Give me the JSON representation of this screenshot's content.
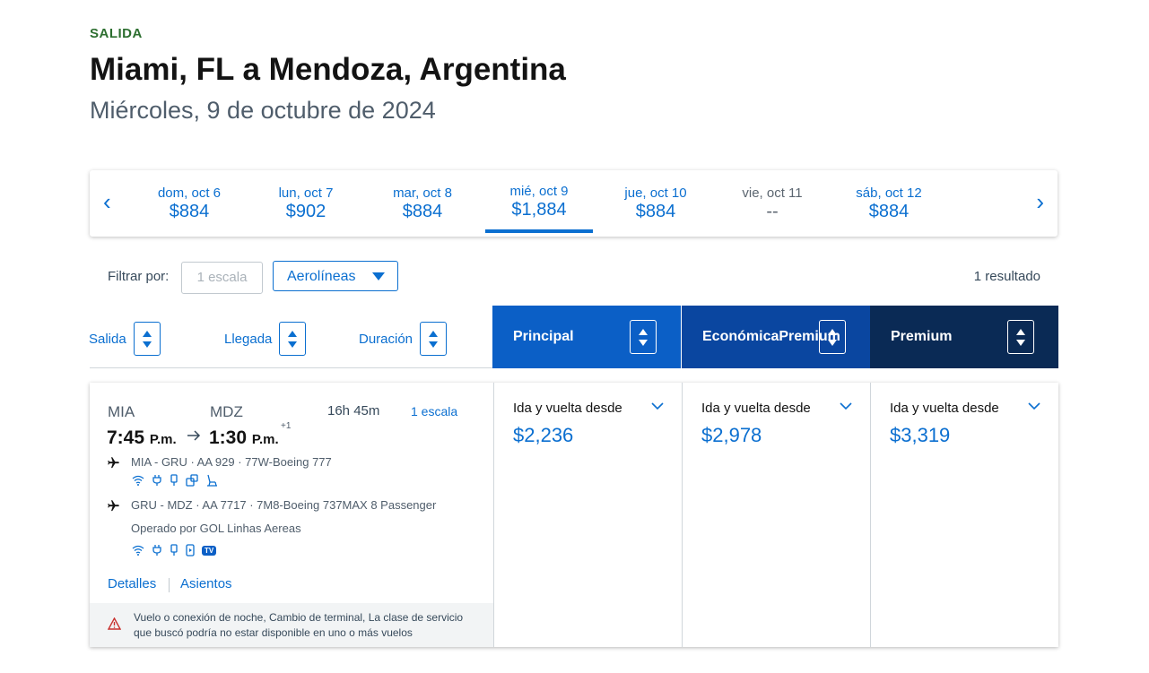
{
  "header": {
    "direction": "SALIDA",
    "route": "Miami, FL a Mendoza, Argentina",
    "date": "Miércoles, 9 de octubre de 2024"
  },
  "carousel": {
    "prev": "‹",
    "next": "›",
    "days": [
      {
        "day": "dom, oct 6",
        "price": "$884"
      },
      {
        "day": "lun, oct 7",
        "price": "$902"
      },
      {
        "day": "mar, oct 8",
        "price": "$884"
      },
      {
        "day": "mié, oct 9",
        "price": "$1,884"
      },
      {
        "day": "jue, oct 10",
        "price": "$884"
      },
      {
        "day": "vie, oct 11",
        "price": "--"
      },
      {
        "day": "sáb, oct 12",
        "price": "$884"
      }
    ]
  },
  "filters": {
    "label": "Filtrar por:",
    "stops": "1 escala",
    "airlines": "Aerolíneas",
    "results": "1 resultado"
  },
  "sort": {
    "departure": "Salida",
    "arrival": "Llegada",
    "duration": "Duración"
  },
  "cabins": [
    {
      "line1": "Principal",
      "line2": "",
      "color": "#0b5fc6"
    },
    {
      "line1": "Económica",
      "line2": "Premium",
      "color": "#0a46a0"
    },
    {
      "line1": "Premium",
      "line2": "",
      "color": "#0a2a55"
    }
  ],
  "flight": {
    "origin": "MIA",
    "destination": "MDZ",
    "dep_time": "7:45",
    "dep_ampm": "P.m.",
    "arr_time": "1:30",
    "arr_ampm": "P.m.",
    "day_offset": "+1",
    "duration": "16h 45m",
    "stops": "1 escala",
    "segments": [
      {
        "text": "MIA - GRU · AA 929 · 77W-Boeing 777"
      },
      {
        "text": "GRU - MDZ · AA 7717 · 7M8-Boeing 737MAX 8 Passenger",
        "operated": "Operado por GOL Linhas Aereas"
      }
    ],
    "tv_badge": "TV",
    "details": "Detalles",
    "seats": "Asientos",
    "warning": "Vuelo o conexión de noche, Cambio de terminal, La clase de servicio que buscó podría no estar disponible en uno o más vuelos",
    "fares": [
      {
        "label": "Ida y vuelta desde",
        "price": "$2,236"
      },
      {
        "label": "Ida y vuelta desde",
        "price": "$2,978"
      },
      {
        "label": "Ida y vuelta desde",
        "price": "$3,319"
      }
    ]
  }
}
